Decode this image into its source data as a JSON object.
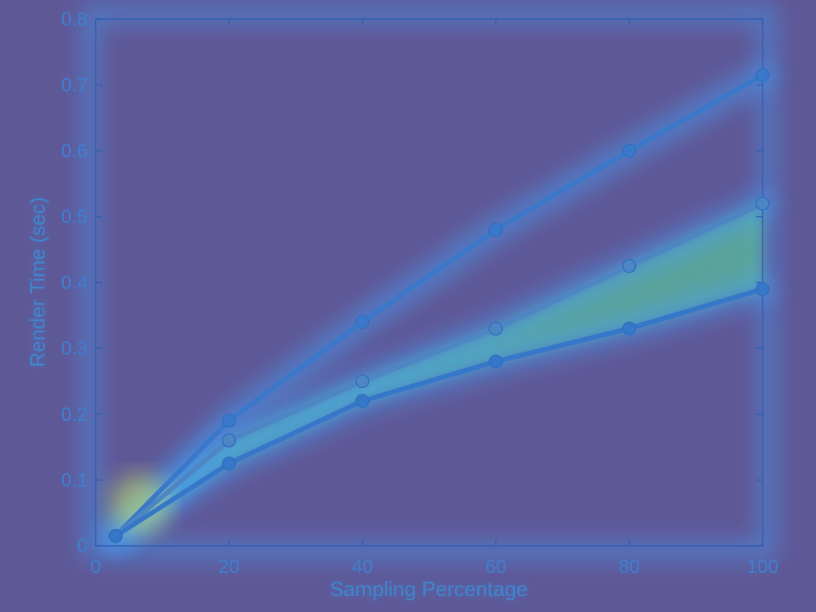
{
  "chart_data": {
    "type": "line",
    "title": "",
    "xlabel": "Sampling Percentage",
    "ylabel": "Render Time (sec)",
    "xlim": [
      0,
      100
    ],
    "ylim": [
      0,
      0.8
    ],
    "xticks": [
      0,
      20,
      40,
      60,
      80,
      100
    ],
    "yticks": [
      0,
      0.1,
      0.2,
      0.3,
      0.4,
      0.5,
      0.6,
      0.7,
      0.8
    ],
    "grid": false,
    "x": [
      3,
      20,
      40,
      60,
      80,
      100
    ],
    "series": [
      {
        "values": [
          0.015,
          0.19,
          0.34,
          0.48,
          0.6,
          0.715
        ],
        "color": "#3b78c9"
      },
      {
        "values": [
          0.015,
          0.16,
          0.25,
          0.33,
          0.425,
          0.52
        ],
        "color": "#4e86c4"
      },
      {
        "values": [
          0.015,
          0.125,
          0.22,
          0.28,
          0.33,
          0.39
        ],
        "color": "#3577c8"
      }
    ],
    "colors": {
      "background": "#5f5897",
      "axis": "#2e5fb5",
      "text": "#3f7fd0",
      "glow": "#42a6ff",
      "glow_hot": "#58e0a0"
    }
  }
}
